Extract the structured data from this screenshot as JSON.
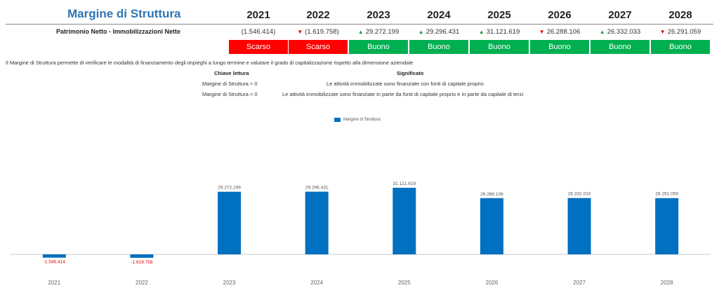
{
  "title": "Margine di Struttura",
  "years": [
    "2021",
    "2022",
    "2023",
    "2024",
    "2025",
    "2026",
    "2027",
    "2028"
  ],
  "row_label": "Patrimonio Netto - Immobilizzazioni Nette",
  "values_text": [
    {
      "text": "(1.546.414)",
      "arrow": ""
    },
    {
      "text": "(1.619.758)",
      "arrow": "▼"
    },
    {
      "text": "29.272.199",
      "arrow": "▲"
    },
    {
      "text": "29.296.431",
      "arrow": "▲"
    },
    {
      "text": "31.121.619",
      "arrow": "▲"
    },
    {
      "text": "26.288.106",
      "arrow": "▼"
    },
    {
      "text": "26.332.033",
      "arrow": "▲"
    },
    {
      "text": "26.291.059",
      "arrow": "▼"
    }
  ],
  "ratings": [
    "Scarso",
    "Scarso",
    "Buono",
    "Buono",
    "Buono",
    "Buono",
    "Buono",
    "Buono"
  ],
  "colors": {
    "good": "#00b050",
    "bad": "#ff0000",
    "bar": "#0070c0",
    "title": "#2e75b6",
    "arrow_up": "#1a9e3a",
    "arrow_down": "#e00000"
  },
  "description": "Il Margine di Struttura permette di verificare le modalità di finanziamento degli impieghi a lungo termine e valutare il grado di capitalizzazione rispetto alla dimensione aziendale",
  "key": {
    "header_left": "Chiave lettura",
    "header_right": "Significato",
    "rows": [
      {
        "left": "Margine di Struttura > 0",
        "right": "Le attività immobilizzate sono finanziate con fonti di capitale proprio"
      },
      {
        "left": "Margine di Struttura < 0",
        "right": "Le attività immobilizzate sono finanziate in parte da fonti di capitale proprio e in parte da capitale di terzi"
      }
    ]
  },
  "chart_data": {
    "type": "bar",
    "categories": [
      "2021",
      "2022",
      "2023",
      "2024",
      "2025",
      "2026",
      "2027",
      "2028"
    ],
    "series": [
      {
        "name": "Margine di Struttura",
        "values": [
          -1546414,
          -1619758,
          29272199,
          29296431,
          31121619,
          26288106,
          26332033,
          26291059
        ]
      }
    ],
    "data_labels": [
      "-1.546.414",
      "-1.619.758",
      "29.272.199",
      "29.296.431",
      "31.121.619",
      "26.288.106",
      "26.332.033",
      "26.291.059"
    ],
    "legend": "top-center",
    "grid": false
  }
}
